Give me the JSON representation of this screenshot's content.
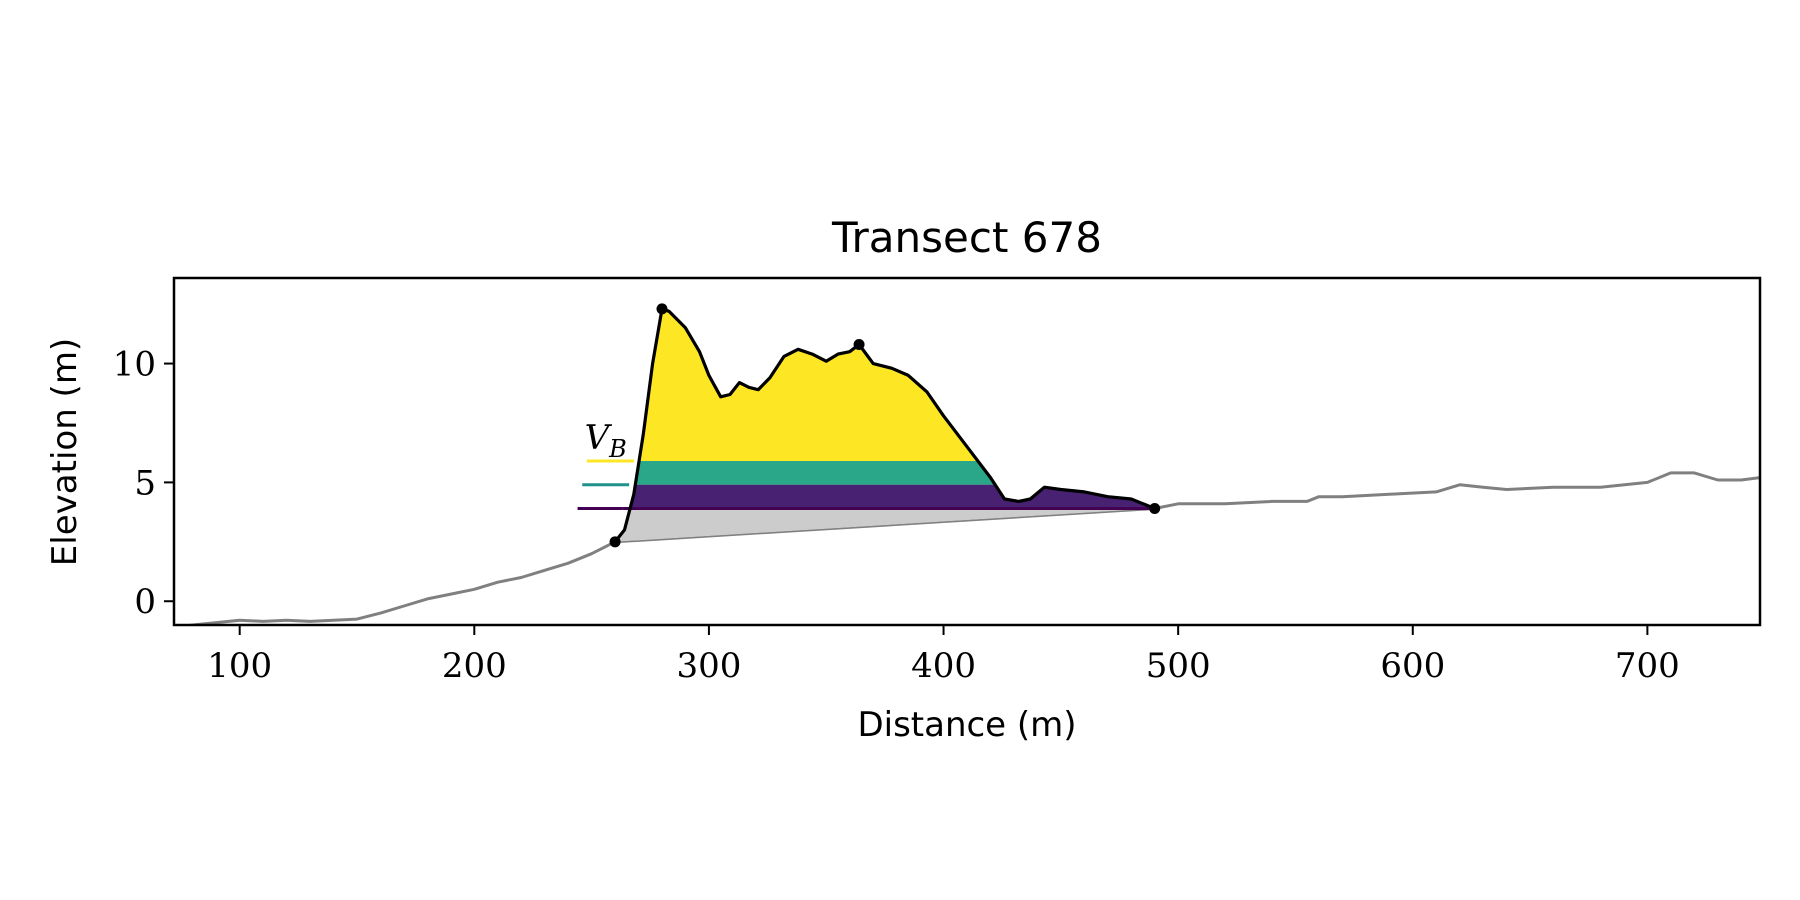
{
  "chart_data": {
    "type": "area",
    "title": "Transect 678",
    "xlabel": "Distance (m)",
    "ylabel": "Elevation (m)",
    "xlim": [
      72,
      748
    ],
    "ylim": [
      -1,
      13.6
    ],
    "xticks": [
      100,
      200,
      300,
      400,
      500,
      600,
      700
    ],
    "yticks": [
      0,
      5,
      10
    ],
    "grid": false,
    "colors": {
      "profile": "#808080",
      "dune_outline": "#000000",
      "base_fill": "#cccccc",
      "band_yellow": "#fde725",
      "band_teal": "#21918c",
      "band_teal_fill": "#2aa789",
      "band_purple": "#440154",
      "band_purple_fill": "#482173"
    },
    "profile": [
      [
        72,
        -1.1
      ],
      [
        80,
        -1.0
      ],
      [
        90,
        -0.9
      ],
      [
        100,
        -0.8
      ],
      [
        110,
        -0.85
      ],
      [
        120,
        -0.8
      ],
      [
        130,
        -0.85
      ],
      [
        140,
        -0.8
      ],
      [
        150,
        -0.75
      ],
      [
        160,
        -0.5
      ],
      [
        170,
        -0.2
      ],
      [
        180,
        0.1
      ],
      [
        190,
        0.3
      ],
      [
        200,
        0.5
      ],
      [
        210,
        0.8
      ],
      [
        220,
        1.0
      ],
      [
        230,
        1.3
      ],
      [
        240,
        1.6
      ],
      [
        250,
        2.0
      ],
      [
        260,
        2.5
      ],
      [
        490,
        3.9
      ],
      [
        500,
        4.1
      ],
      [
        520,
        4.1
      ],
      [
        540,
        4.2
      ],
      [
        555,
        4.2
      ],
      [
        560,
        4.4
      ],
      [
        570,
        4.4
      ],
      [
        590,
        4.5
      ],
      [
        610,
        4.6
      ],
      [
        620,
        4.9
      ],
      [
        630,
        4.8
      ],
      [
        640,
        4.7
      ],
      [
        660,
        4.8
      ],
      [
        680,
        4.8
      ],
      [
        700,
        5.0
      ],
      [
        710,
        5.4
      ],
      [
        720,
        5.4
      ],
      [
        730,
        5.1
      ],
      [
        740,
        5.1
      ],
      [
        748,
        5.2
      ]
    ],
    "dune": [
      [
        260,
        2.5
      ],
      [
        264,
        3.0
      ],
      [
        268,
        4.5
      ],
      [
        272,
        7.0
      ],
      [
        276,
        10.0
      ],
      [
        280,
        12.3
      ],
      [
        283,
        12.2
      ],
      [
        290,
        11.5
      ],
      [
        296,
        10.5
      ],
      [
        300,
        9.5
      ],
      [
        305,
        8.6
      ],
      [
        309,
        8.7
      ],
      [
        313,
        9.2
      ],
      [
        317,
        9.0
      ],
      [
        321,
        8.9
      ],
      [
        326,
        9.4
      ],
      [
        332,
        10.3
      ],
      [
        338,
        10.6
      ],
      [
        344,
        10.4
      ],
      [
        350,
        10.1
      ],
      [
        355,
        10.4
      ],
      [
        360,
        10.5
      ],
      [
        364,
        10.8
      ],
      [
        370,
        10.0
      ],
      [
        378,
        9.8
      ],
      [
        385,
        9.5
      ],
      [
        393,
        8.8
      ],
      [
        400,
        7.8
      ],
      [
        410,
        6.5
      ],
      [
        420,
        5.2
      ],
      [
        426,
        4.3
      ],
      [
        432,
        4.2
      ],
      [
        437,
        4.3
      ],
      [
        443,
        4.8
      ],
      [
        450,
        4.7
      ],
      [
        460,
        4.6
      ],
      [
        470,
        4.4
      ],
      [
        480,
        4.3
      ],
      [
        490,
        3.9
      ]
    ],
    "base_line": [
      [
        260,
        2.5
      ],
      [
        490,
        3.9
      ]
    ],
    "points": [
      [
        260,
        2.5
      ],
      [
        280,
        12.3
      ],
      [
        364,
        10.8
      ],
      [
        490,
        3.9
      ]
    ],
    "bands": [
      {
        "name": "yellow",
        "lower": 5.9,
        "upper": 13.0
      },
      {
        "name": "teal",
        "lower": 4.9,
        "upper": 5.9
      },
      {
        "name": "purple",
        "lower": 3.9,
        "upper": 4.9
      }
    ],
    "band_marks": [
      {
        "level": 5.9,
        "x_start": 248
      },
      {
        "level": 4.9,
        "x_start": 246
      },
      {
        "level": 3.9,
        "x_start": 244
      }
    ],
    "annotation": {
      "text": "V_B",
      "main": "V",
      "sub": "B",
      "x": 247,
      "y": 6.4
    }
  }
}
